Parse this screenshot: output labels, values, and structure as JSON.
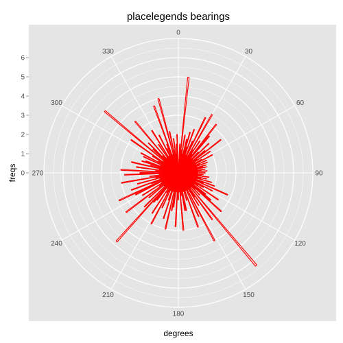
{
  "colors": {
    "panel_background": "#e5e5e5",
    "grid": "#ffffff",
    "bar_stroke": "#ff0000",
    "text": "#000000",
    "tick_text": "#4d4d4d"
  },
  "chart_data": {
    "type": "bar",
    "coord": "polar",
    "title": "placelegends bearings",
    "xlabel": "degrees",
    "ylabel": "freqs",
    "angle_ticks": [
      "0",
      "30",
      "60",
      "90",
      "120",
      "150",
      "180",
      "210",
      "240",
      "270",
      "300",
      "330"
    ],
    "angle_tick_values": [
      0,
      30,
      60,
      90,
      120,
      150,
      180,
      210,
      240,
      270,
      300,
      330
    ],
    "radial_ticks": [
      "0",
      "1",
      "2",
      "3",
      "4",
      "5",
      "6"
    ],
    "radial_tick_values": [
      0,
      1,
      2,
      3,
      4,
      5,
      6
    ],
    "rlim": [
      0,
      7
    ],
    "xlim": [
      0,
      360
    ],
    "grid": true,
    "legend": "none",
    "bar_fill": "none",
    "bar_outline": "#ff0000",
    "series": [
      {
        "x": [
          3,
          6,
          8,
          10,
          12,
          14,
          16,
          18,
          20,
          22,
          24,
          26,
          28,
          30,
          32,
          34,
          36,
          38,
          40,
          42,
          44,
          46,
          48,
          50,
          52,
          54,
          56,
          58,
          60,
          62,
          64,
          66,
          68,
          70,
          72,
          74,
          76,
          78,
          80,
          82,
          84,
          86,
          88,
          90,
          92,
          94,
          96,
          98,
          100,
          102,
          104,
          106,
          108,
          110,
          112,
          114,
          116,
          118,
          120,
          122,
          124,
          126,
          128,
          130,
          132,
          134,
          136,
          138,
          140,
          142,
          144,
          146,
          148,
          150,
          152,
          155,
          158,
          160,
          163,
          165,
          168,
          170,
          173,
          175,
          178,
          180,
          183,
          185,
          188,
          190,
          193,
          195,
          198,
          200,
          203,
          205,
          208,
          210,
          213,
          215,
          218,
          220,
          222,
          225,
          228,
          230,
          233,
          235,
          238,
          240,
          243,
          245,
          248,
          250,
          253,
          255,
          258,
          260,
          263,
          265,
          268,
          270,
          273,
          275,
          278,
          280,
          283,
          285,
          288,
          290,
          293,
          295,
          298,
          300,
          303,
          305,
          308,
          310,
          313,
          315,
          318,
          320,
          323,
          325,
          328,
          330,
          333,
          335,
          338,
          340,
          343,
          345,
          348,
          350,
          352,
          354,
          356,
          358
        ],
        "values": [
          1.5,
          5.0,
          1.2,
          2.0,
          1.0,
          1.8,
          2.2,
          1.4,
          2.4,
          1.0,
          1.8,
          3.2,
          1.0,
          3.5,
          1.4,
          2.0,
          1.2,
          3.2,
          2.5,
          1.0,
          1.5,
          2.2,
          1.0,
          1.8,
          2.8,
          1.2,
          2.0,
          1.0,
          1.4,
          2.0,
          1.0,
          1.6,
          1.2,
          1.6,
          1.0,
          1.5,
          1.3,
          1.5,
          1.0,
          1.4,
          1.2,
          1.5,
          1.0,
          1.4,
          1.0,
          1.3,
          1.2,
          1.6,
          1.0,
          1.5,
          1.2,
          1.8,
          1.0,
          2.0,
          1.4,
          2.8,
          1.0,
          2.0,
          1.5,
          1.2,
          2.5,
          1.0,
          1.8,
          2.2,
          3.0,
          1.2,
          1.6,
          1.0,
          6.3,
          1.0,
          3.0,
          1.5,
          2.0,
          1.0,
          4.0,
          2.5,
          1.0,
          3.0,
          1.5,
          1.0,
          2.0,
          2.0,
          1.2,
          3.0,
          1.0,
          1.4,
          2.8,
          1.0,
          1.8,
          2.0,
          3.0,
          1.0,
          2.5,
          1.5,
          1.0,
          2.0,
          3.0,
          1.2,
          2.5,
          1.0,
          1.8,
          2.0,
          4.8,
          2.5,
          1.0,
          2.0,
          3.4,
          1.2,
          2.2,
          1.0,
          2.5,
          3.4,
          1.5,
          2.6,
          1.0,
          2.2,
          1.2,
          3.0,
          1.5,
          1.0,
          2.8,
          2.0,
          3.0,
          1.2,
          2.2,
          1.0,
          2.5,
          1.5,
          2.0,
          1.8,
          1.0,
          2.0,
          2.2,
          1.2,
          1.6,
          3.0,
          1.0,
          5.0,
          1.8,
          2.2,
          1.2,
          3.5,
          1.0,
          1.8,
          2.6,
          1.0,
          2.2,
          1.4,
          1.6,
          3.7,
          1.0,
          4.0,
          2.2,
          1.2,
          1.8,
          1.0,
          1.5,
          2.0
        ]
      }
    ]
  }
}
